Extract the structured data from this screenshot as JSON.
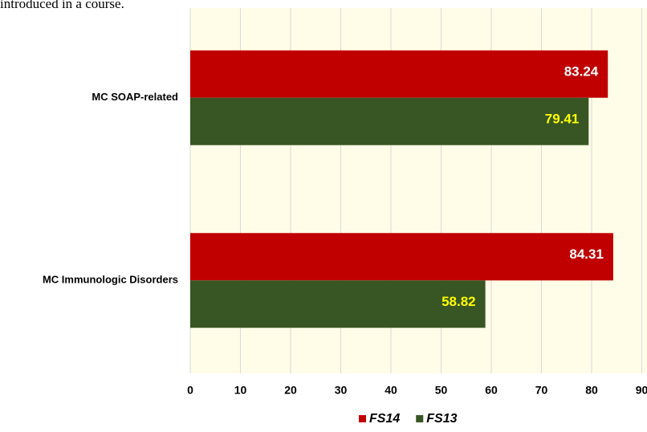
{
  "caption": "introduced in a course.",
  "chart_data": {
    "type": "hbar",
    "categories": [
      "MC SOAP-related",
      "MC Immunologic Disorders"
    ],
    "series": [
      {
        "name": "FS14",
        "color": "#c00000",
        "label_color": "#ffffff",
        "values": [
          83.24,
          84.31
        ]
      },
      {
        "name": "FS13",
        "color": "#375623",
        "label_color": "#ffff00",
        "values": [
          79.41,
          58.82
        ]
      }
    ],
    "xlim": [
      0,
      90
    ],
    "xticks": [
      0,
      10,
      20,
      30,
      40,
      50,
      60,
      70,
      80,
      90
    ],
    "grid": true,
    "legend": "bottom",
    "background": "#fffde8"
  }
}
